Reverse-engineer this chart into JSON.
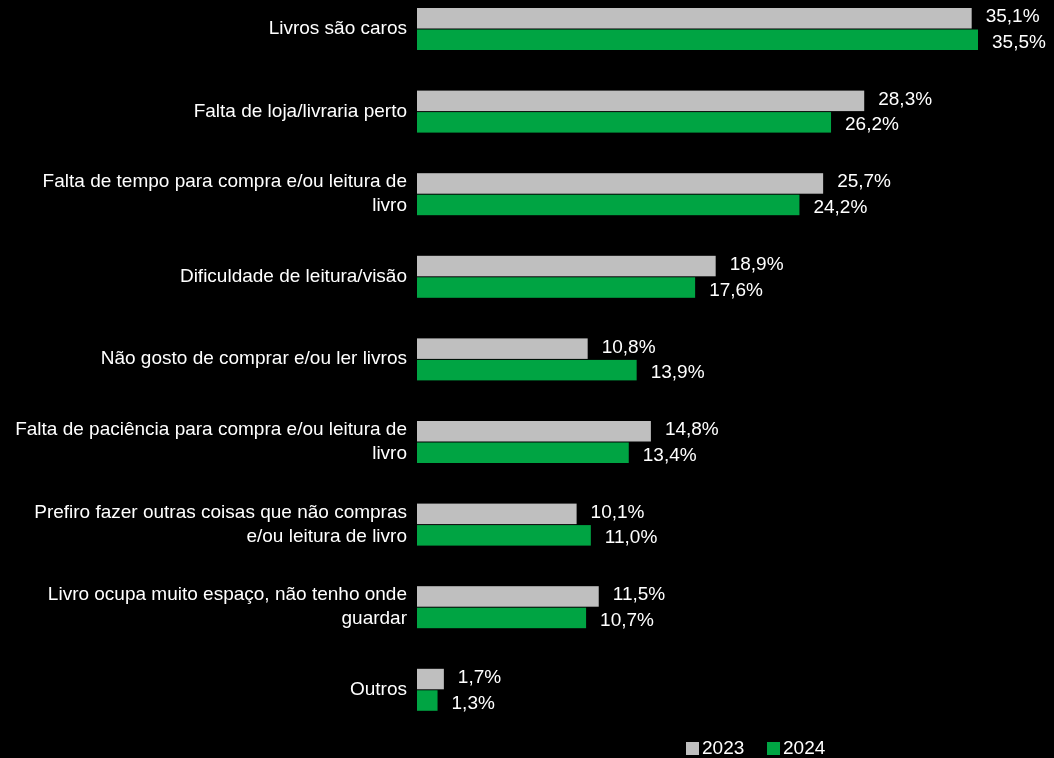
{
  "chart_data": {
    "type": "bar",
    "orientation": "horizontal",
    "legend": "bottom",
    "categories": [
      "Livros são caros",
      "Falta de loja/livraria perto",
      "Falta de tempo para compra e/ou leitura de livro",
      "Dificuldade de leitura/visão",
      "Não gosto de comprar e/ou ler livros",
      "Falta de paciência para compra e/ou leitura de livro",
      "Prefiro fazer outras coisas que não compras e/ou leitura de livro",
      "Livro ocupa muito espaço, não tenho onde guardar",
      "Outros"
    ],
    "series": [
      {
        "name": "2023",
        "color": "#bfbfbf",
        "values": [
          35.1,
          28.3,
          25.7,
          18.9,
          10.8,
          14.8,
          10.1,
          11.5,
          1.7
        ],
        "value_labels": [
          "35,1%",
          "28,3%",
          "25,7%",
          "18,9%",
          "10,8%",
          "14,8%",
          "10,1%",
          "11,5%",
          "1,7%"
        ]
      },
      {
        "name": "2024",
        "color": "#00a443",
        "values": [
          35.5,
          26.2,
          24.2,
          17.6,
          13.9,
          13.4,
          11.0,
          10.7,
          1.3
        ],
        "value_labels": [
          "35,5%",
          "26,2%",
          "24,2%",
          "17,6%",
          "13,9%",
          "13,4%",
          "11,0%",
          "10,7%",
          "1,3%"
        ]
      }
    ]
  }
}
